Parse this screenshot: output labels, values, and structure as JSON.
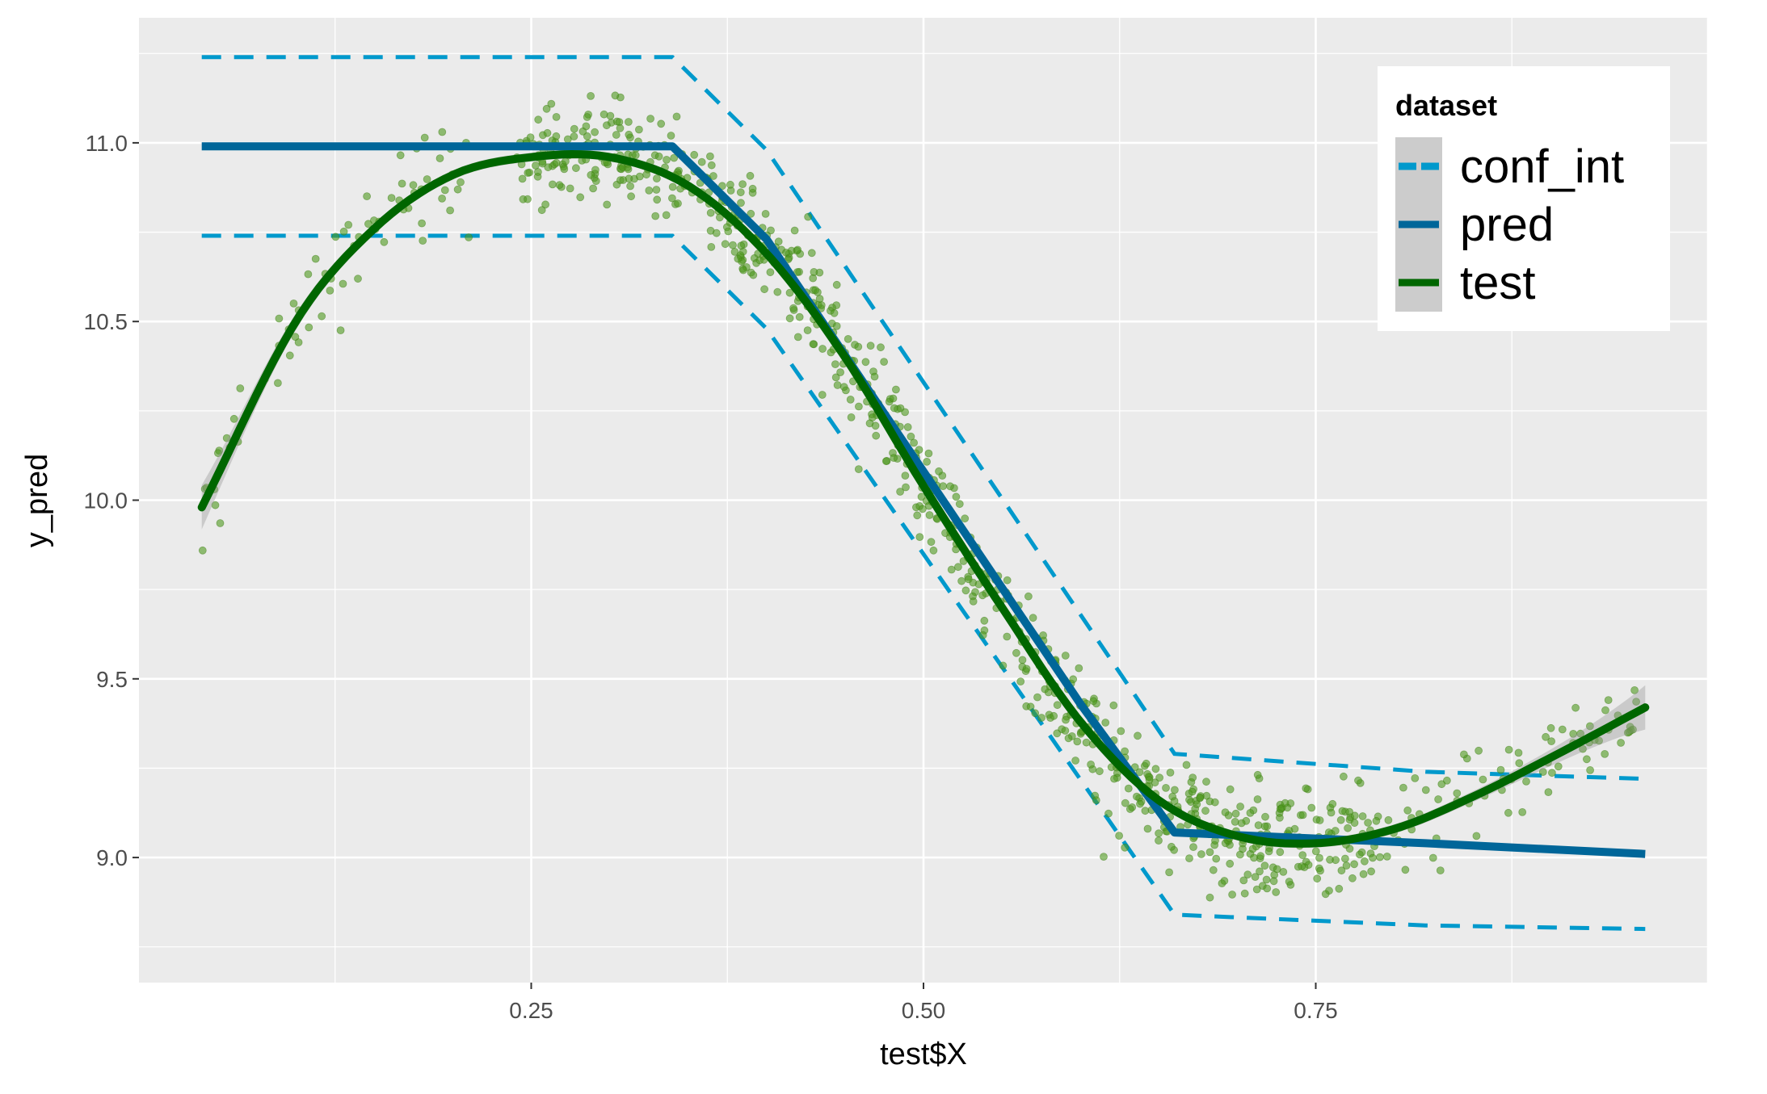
{
  "chart_data": {
    "type": "line",
    "title": "",
    "xlabel": "test$X",
    "ylabel": "y_pred",
    "xlim": [
      0.0,
      1.0
    ],
    "ylim": [
      8.65,
      11.35
    ],
    "x_ticks": [
      0.25,
      0.5,
      0.75
    ],
    "x_tick_labels": [
      "0.25",
      "0.50",
      "0.75"
    ],
    "y_ticks": [
      9.0,
      9.5,
      10.0,
      10.5,
      11.0
    ],
    "y_tick_labels": [
      "9.0",
      "9.5",
      "10.0",
      "10.5",
      "11.0"
    ],
    "grid": true,
    "legend": {
      "title": "dataset",
      "placement": "top-right",
      "entries": [
        {
          "label": "conf_int",
          "color": "#0099CC",
          "dashed": true
        },
        {
          "label": "pred",
          "color": "#006699",
          "dashed": false
        },
        {
          "label": "test",
          "color": "#006600",
          "dashed": false
        }
      ]
    },
    "series": [
      {
        "name": "conf_int",
        "color": "#0099CC",
        "style": "dashed",
        "lines": [
          {
            "x": [
              0.04,
              0.34,
              0.4,
              0.66,
              0.82,
              0.96
            ],
            "y": [
              11.24,
              11.24,
              10.98,
              9.29,
              9.24,
              9.22
            ]
          },
          {
            "x": [
              0.04,
              0.34,
              0.4,
              0.66,
              0.82,
              0.96
            ],
            "y": [
              10.74,
              10.74,
              10.48,
              8.84,
              8.81,
              8.8
            ]
          }
        ]
      },
      {
        "name": "pred",
        "color": "#006699",
        "style": "solid",
        "x": [
          0.04,
          0.34,
          0.4,
          0.5,
          0.6,
          0.66,
          0.82,
          0.96
        ],
        "y": [
          10.99,
          10.99,
          10.73,
          10.08,
          9.43,
          9.07,
          9.04,
          9.01
        ]
      },
      {
        "name": "test",
        "color": "#006600",
        "style": "smooth",
        "x": [
          0.04,
          0.1,
          0.15,
          0.2,
          0.25,
          0.3,
          0.35,
          0.4,
          0.45,
          0.5,
          0.55,
          0.6,
          0.65,
          0.7,
          0.75,
          0.8,
          0.85,
          0.9,
          0.96
        ],
        "y": [
          9.98,
          10.5,
          10.76,
          10.91,
          10.96,
          10.96,
          10.88,
          10.69,
          10.4,
          10.04,
          9.7,
          9.38,
          9.16,
          9.06,
          9.04,
          9.08,
          9.17,
          9.28,
          9.42
        ]
      }
    ],
    "scatter_description_series": "test points (semi-transparent green)",
    "scatter_color": "#4F9A1E",
    "point_count": 950
  }
}
